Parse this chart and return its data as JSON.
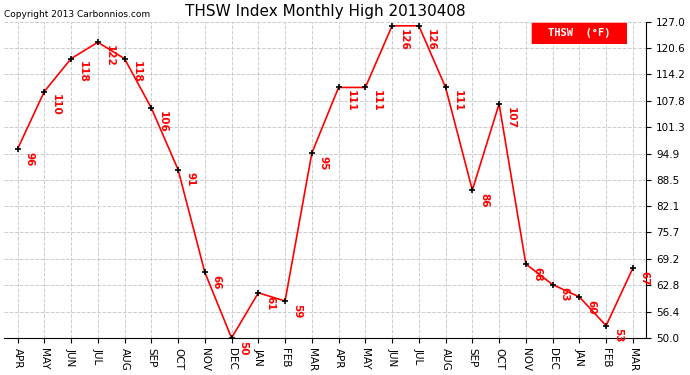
{
  "title": "THSW Index Monthly High 20130408",
  "copyright": "Copyright 2013 Carbonnios.com",
  "legend_label": "THSW  (°F)",
  "months": [
    "APR",
    "MAY",
    "JUN",
    "JUL",
    "AUG",
    "SEP",
    "OCT",
    "NOV",
    "DEC",
    "JAN",
    "FEB",
    "MAR",
    "APR",
    "MAY",
    "JUN",
    "JUL",
    "AUG",
    "SEP",
    "OCT",
    "NOV",
    "DEC",
    "JAN",
    "FEB",
    "MAR"
  ],
  "values": [
    96,
    110,
    118,
    122,
    118,
    106,
    91,
    66,
    50,
    61,
    59,
    95,
    111,
    111,
    126,
    126,
    111,
    86,
    107,
    68,
    63,
    60,
    53,
    67
  ],
  "ylim": [
    50.0,
    127.0
  ],
  "yticks": [
    50.0,
    56.4,
    62.8,
    69.2,
    75.7,
    82.1,
    88.5,
    94.9,
    101.3,
    107.8,
    114.2,
    120.6,
    127.0
  ],
  "line_color": "red",
  "marker_color": "black",
  "grid_color": "#cccccc",
  "background_color": "white",
  "title_fontsize": 11,
  "tick_fontsize": 7.5,
  "annotation_fontsize": 7.5,
  "legend_bg": "red",
  "legend_text_color": "white",
  "copyright_fontsize": 6.5
}
